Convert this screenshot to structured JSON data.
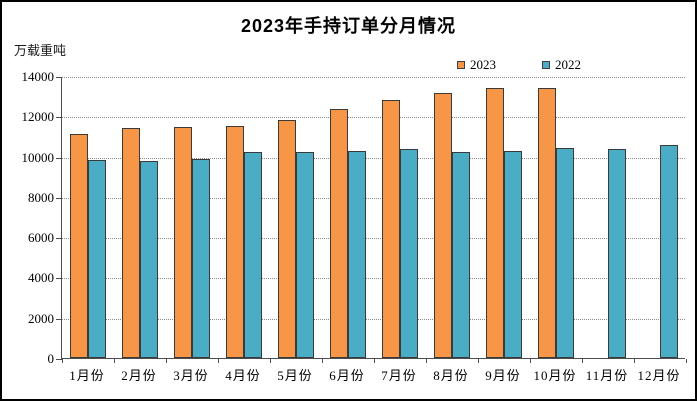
{
  "chart_data": {
    "type": "bar",
    "title": "2023年手持订单分月情况",
    "unit_label": "万载重吨",
    "categories": [
      "1月份",
      "2月份",
      "3月份",
      "4月份",
      "5月份",
      "6月份",
      "7月份",
      "8月份",
      "9月份",
      "10月份",
      "11月份",
      "12月份"
    ],
    "series": [
      {
        "name": "2023",
        "color": "#F79646",
        "border_color": "#3A3A3A",
        "values": [
          11110,
          11400,
          11450,
          11510,
          11800,
          12380,
          12800,
          13180,
          13400,
          13390,
          null,
          null
        ]
      },
      {
        "name": "2022",
        "color": "#4BACC6",
        "border_color": "#3A3A3A",
        "values": [
          9820,
          9800,
          9900,
          10240,
          10210,
          10270,
          10400,
          10240,
          10280,
          10440,
          10370,
          10560
        ]
      }
    ],
    "ylim": [
      0,
      14000
    ],
    "ytick_step": 2000,
    "ytick_labels": [
      "14000",
      "12000",
      "10000",
      "8000",
      "6000",
      "4000",
      "2000",
      "0"
    ],
    "xlabel": "",
    "ylabel": "万载重吨",
    "grid": "horizontal-dotted",
    "legend_position": "top-right"
  }
}
